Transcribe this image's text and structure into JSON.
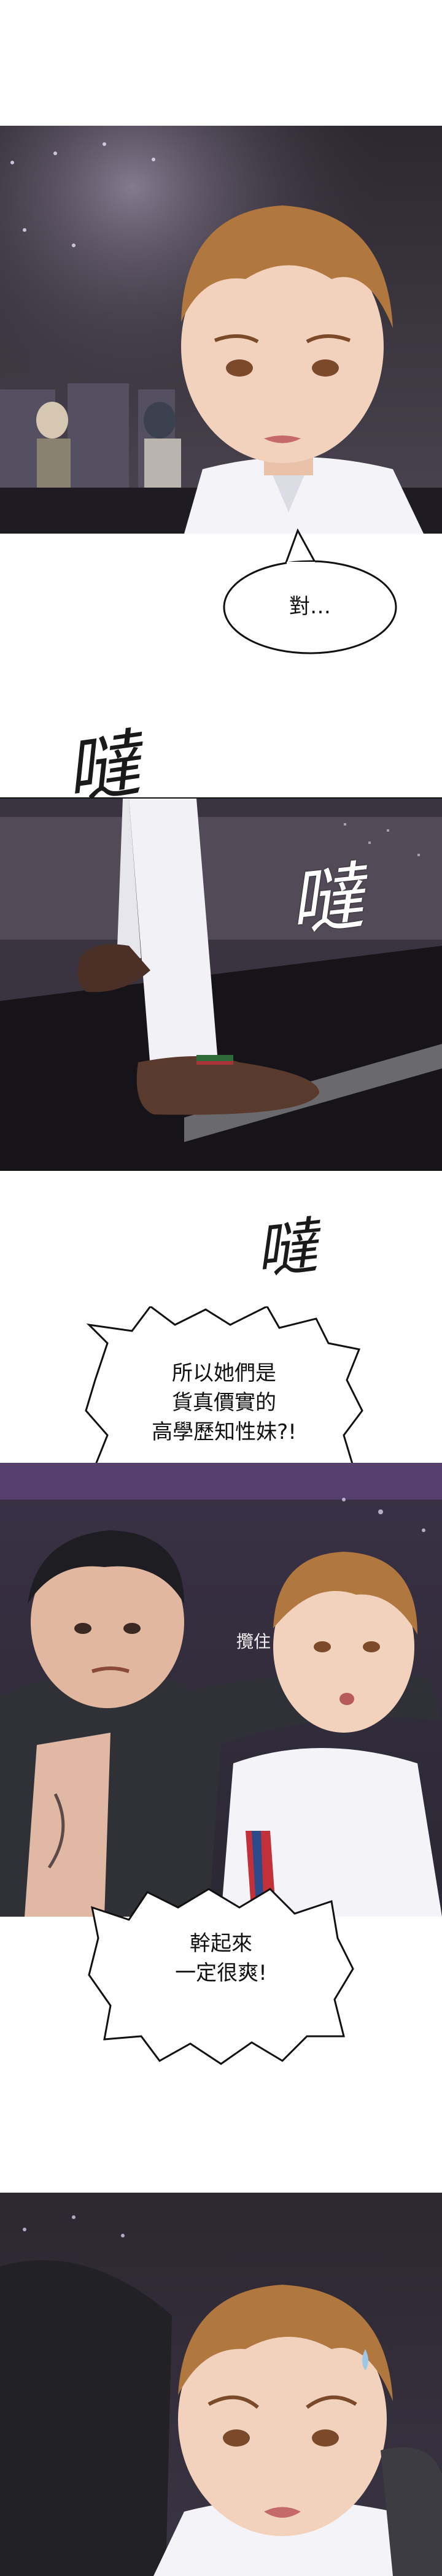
{
  "page": {
    "background": "#ffffff"
  },
  "panels": [
    {
      "id": "panel-1",
      "scene": "man-bar-closeup"
    },
    {
      "id": "panel-2",
      "scene": "shoe-step"
    },
    {
      "id": "panel-3",
      "scene": "two-men-bar"
    },
    {
      "id": "panel-4",
      "scene": "man-closeup-sweat"
    }
  ],
  "bubbles": {
    "b1": {
      "lines": [
        "對…"
      ]
    },
    "b2": {
      "lines": [
        "所以她們是",
        "貨真價實的",
        "高學歷知性妹?!"
      ]
    },
    "b3": {
      "lines": [
        "幹起來",
        "一定很爽!"
      ]
    }
  },
  "sfx": {
    "s1": "噠",
    "s2": "噠",
    "s3": "噠",
    "s4": "攬住"
  },
  "colors": {
    "bar_bg": "#3a3440",
    "hair": "#b0773e",
    "skin": "#f3d2bd",
    "shirt": "#f4f4f8",
    "dark_shirt": "#2f3136"
  }
}
